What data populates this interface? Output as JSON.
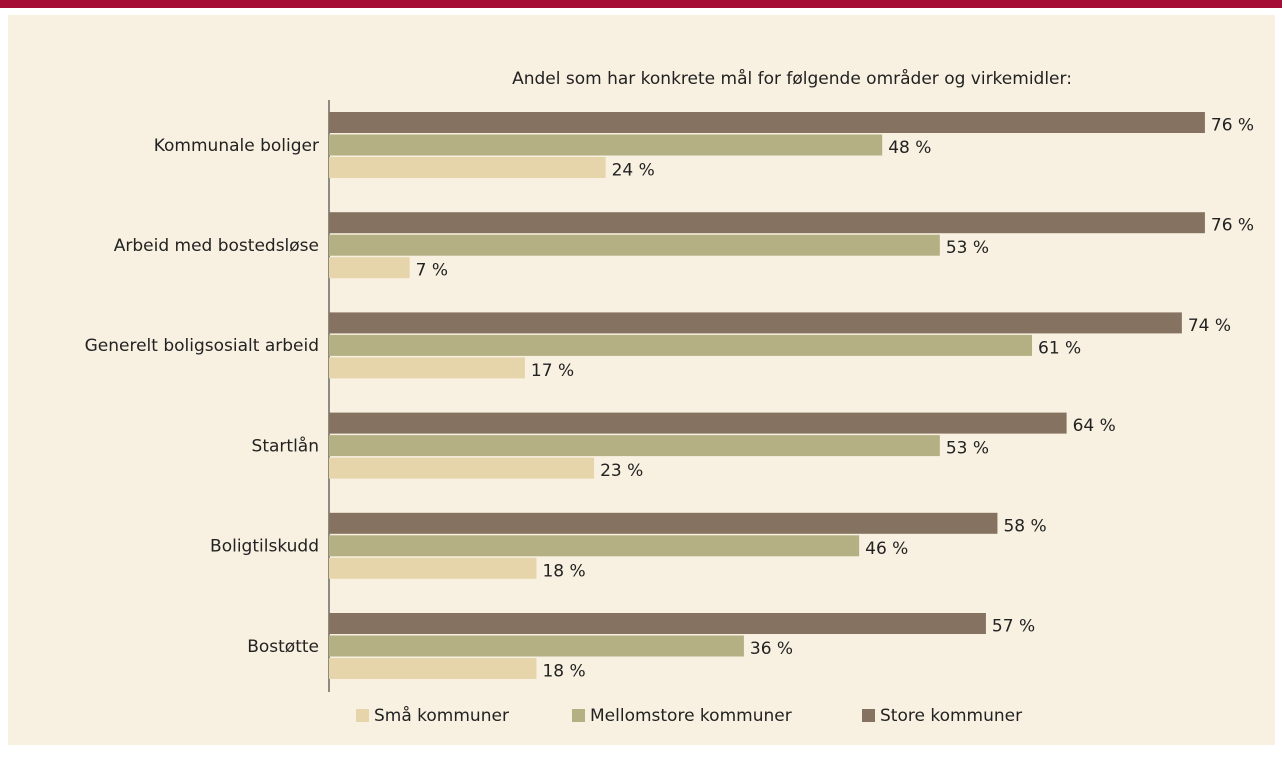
{
  "chart_data": {
    "type": "barh",
    "title": "Andel som har konkrete mål for følgende områder og virkemidler:",
    "categories": [
      "Kommunale boliger",
      "Arbeid med bostedsløse",
      "Generelt boligsosialt arbeid",
      "Startlån",
      "Boligtilskudd",
      "Bostøtte"
    ],
    "series": [
      {
        "name": "Små kommuner",
        "color": "#e6d5ab",
        "values": [
          24,
          7,
          17,
          23,
          18,
          18
        ],
        "value_labels": [
          "24 %",
          "7 %",
          "17 %",
          "23 %",
          "18 %",
          "18 %"
        ]
      },
      {
        "name": "Mellomstore kommuner",
        "color": "#b5b084",
        "values": [
          48,
          53,
          61,
          53,
          46,
          36
        ],
        "value_labels": [
          "48 %",
          "53 %",
          "61 %",
          "53 %",
          "46 %",
          "36 %"
        ]
      },
      {
        "name": "Store kommuner",
        "color": "#857260",
        "values": [
          76,
          76,
          74,
          64,
          58,
          57
        ],
        "value_labels": [
          "76 %",
          "76 %",
          "74 %",
          "64 %",
          "58 %",
          "57 %"
        ]
      }
    ],
    "xlim": [
      0,
      80
    ],
    "legend": "bottom"
  }
}
